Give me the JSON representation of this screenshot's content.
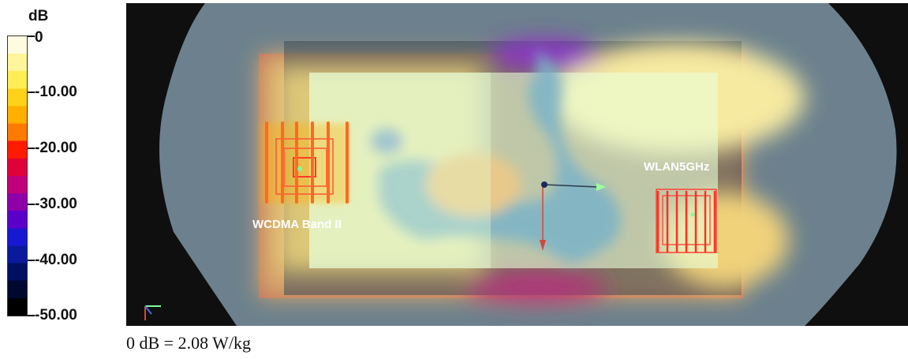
{
  "legend": {
    "unit": "dB",
    "ticks": [
      "0",
      "-10.00",
      "-20.00",
      "-30.00",
      "-40.00",
      "-50.00"
    ],
    "colors": [
      "#fffbe0",
      "#fff59a",
      "#ffee55",
      "#ffd21a",
      "#ffaf00",
      "#ff7a00",
      "#ff1a00",
      "#e0003a",
      "#c0007a",
      "#8f00a8",
      "#5b00c8",
      "#1818d0",
      "#0a1a9c",
      "#001060",
      "#000830",
      "#000000"
    ]
  },
  "annotations": {
    "antenna_left": "WCDMA Band II",
    "antenna_right": "WLAN5GHz"
  },
  "footer": "0 dB = 2.08 W/kg",
  "colors": {
    "background": "#0f0f10",
    "phantom": "#6e8490",
    "device_dark": "#3a4a55",
    "heat_core": "#e9ffd8",
    "coupling_band": "#7ab3c8",
    "hotspot_ring": "#ff5a3a"
  }
}
